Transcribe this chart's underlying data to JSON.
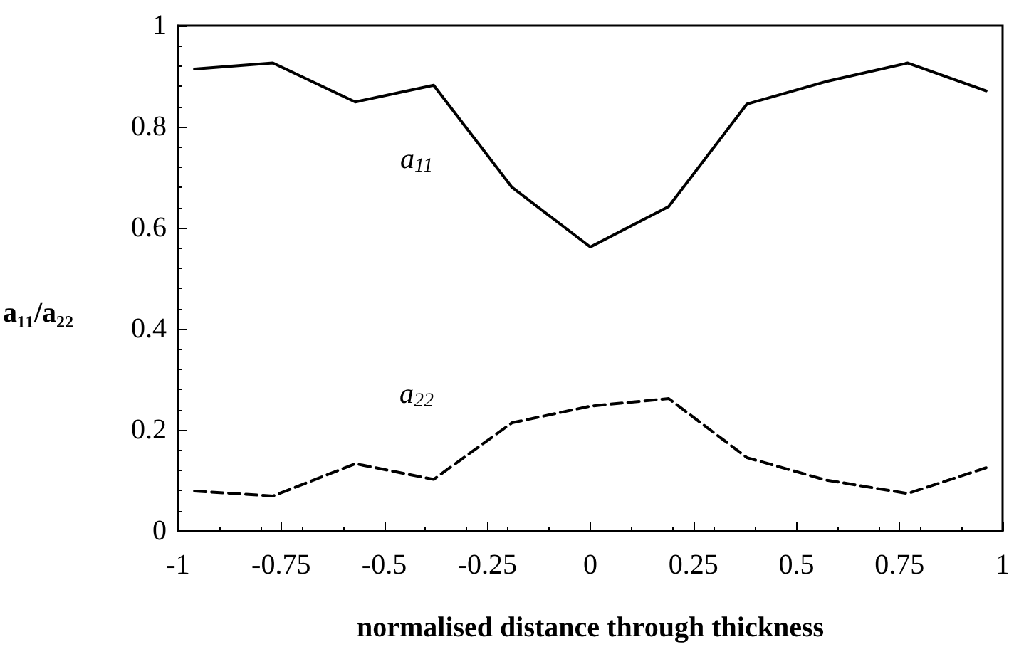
{
  "chart_data": {
    "type": "line",
    "xlabel": "normalised distance through thickness",
    "ylabel": "a₁₁/a₂₂",
    "x": [
      -0.96,
      -0.77,
      -0.57,
      -0.38,
      -0.19,
      0,
      0.19,
      0.38,
      0.57,
      0.77,
      0.96
    ],
    "series": [
      {
        "name": "a$_{11}$",
        "color": "#000000",
        "line_style": "solid",
        "values": [
          0.914,
          0.926,
          0.849,
          0.882,
          0.68,
          0.562,
          0.642,
          0.845,
          0.889,
          0.926,
          0.871
        ]
      },
      {
        "name": "a$_{22}$",
        "color": "#000000",
        "line_style": "dashed",
        "values": [
          0.079,
          0.069,
          0.133,
          0.102,
          0.214,
          0.247,
          0.262,
          0.145,
          0.101,
          0.074,
          0.125
        ]
      }
    ],
    "xlim": [
      -1,
      1
    ],
    "xticks": [
      -1,
      -0.75,
      -0.5,
      -0.25,
      0,
      0.25,
      0.5,
      0.75,
      1
    ],
    "ylim": [
      0,
      1
    ],
    "yticks": [
      0,
      0.2,
      0.4,
      0.6,
      0.8,
      1
    ],
    "grid": false,
    "marker": "none"
  }
}
